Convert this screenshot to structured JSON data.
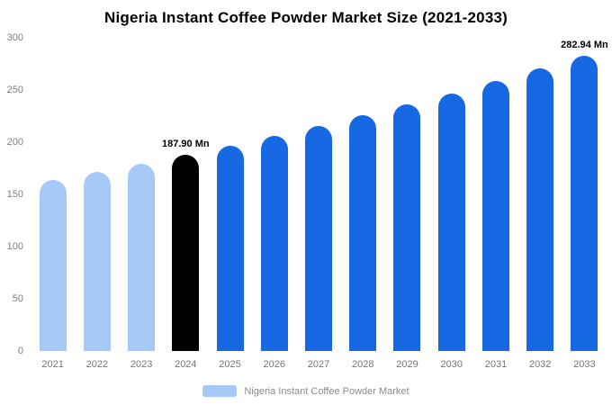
{
  "chart_data": {
    "type": "bar",
    "title": "Nigeria Instant Coffee Powder Market Size (2021-2033)",
    "categories": [
      "2021",
      "2022",
      "2023",
      "2024",
      "2025",
      "2026",
      "2027",
      "2028",
      "2029",
      "2030",
      "2031",
      "2032",
      "2033"
    ],
    "values": [
      163.9,
      171.5,
      179.5,
      187.9,
      196.7,
      205.8,
      215.4,
      225.5,
      236.0,
      246.9,
      258.5,
      270.5,
      282.94
    ],
    "unit": "Mn",
    "ylim": [
      0,
      300
    ],
    "yticks": [
      0,
      50,
      100,
      150,
      200,
      250,
      300
    ],
    "grid": false,
    "legend_position": "bottom",
    "legend_label": "Nigeria Instant Coffee Powder Market",
    "annotations": [
      {
        "category": "2024",
        "text": "187.90 Mn"
      },
      {
        "category": "2033",
        "text": "282.94 Mn"
      }
    ],
    "bar_color_groups": [
      "past",
      "past",
      "past",
      "highlight",
      "forecast",
      "forecast",
      "forecast",
      "forecast",
      "forecast",
      "forecast",
      "forecast",
      "forecast",
      "forecast"
    ],
    "colors": {
      "past": "#A7C9F8",
      "highlight": "#000000",
      "forecast": "#1668E3",
      "axis_text": "#808080",
      "label_text": "#000000"
    }
  }
}
